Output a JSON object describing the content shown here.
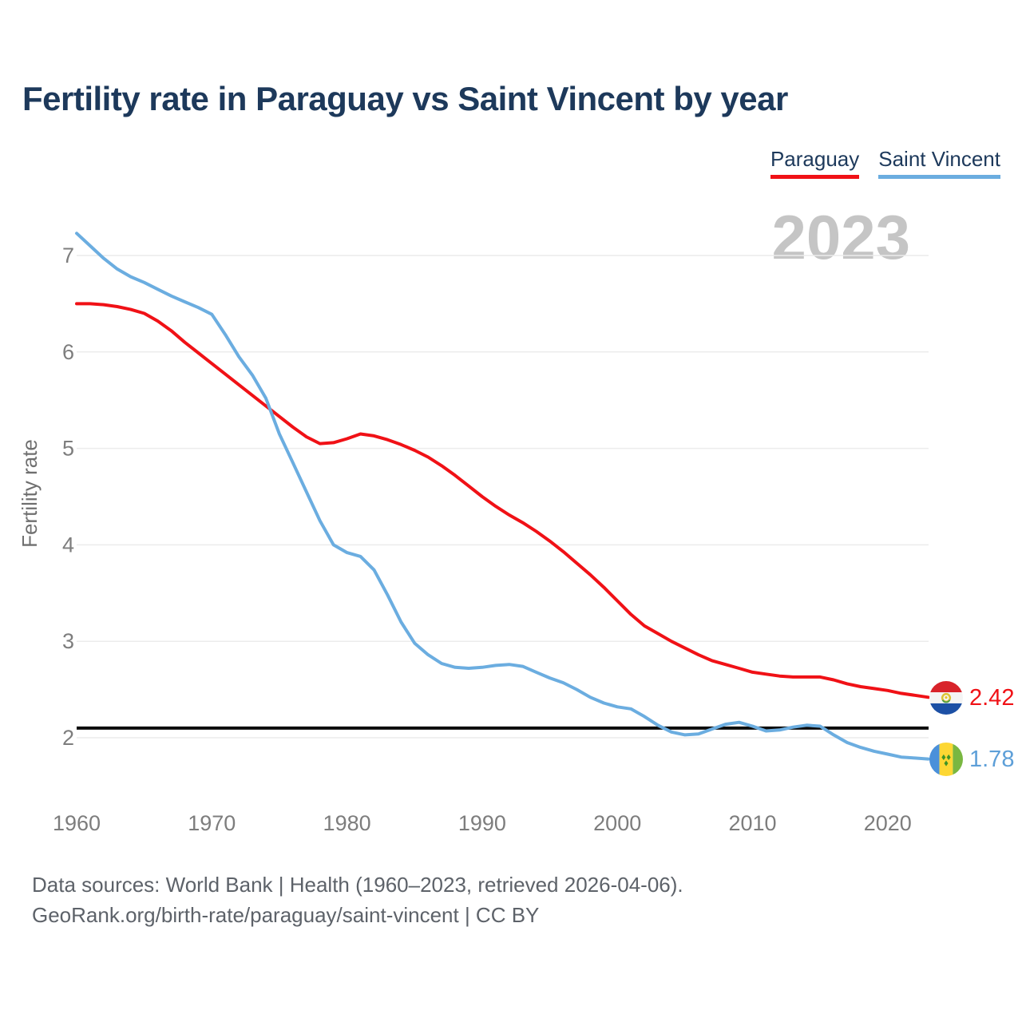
{
  "title": "Fertility rate in Paraguay vs Saint Vincent by year",
  "watermark": "2023",
  "legend": {
    "items": [
      {
        "label": "Paraguay",
        "color": "#f01116"
      },
      {
        "label": "Saint Vincent",
        "color": "#6badе0"
      }
    ]
  },
  "y_axis": {
    "label": "Fertility rate",
    "ticks": [
      2,
      3,
      4,
      5,
      6,
      7
    ]
  },
  "x_axis": {
    "ticks": [
      1960,
      1970,
      1980,
      1990,
      2000,
      2010,
      2020
    ]
  },
  "reference_line": {
    "value": 2.1,
    "color": "#0b0b0b"
  },
  "end_labels": [
    {
      "series": "Paraguay",
      "value": "2.42",
      "flag": "paraguay-flag",
      "color": "#f01116"
    },
    {
      "series": "Saint Vincent",
      "value": "1.78",
      "flag": "saint-vincent-flag",
      "color": "#5d9fd8"
    }
  ],
  "footer": {
    "line1": "Data sources: World Bank | Health (1960–2023, retrieved 2026-04-06).",
    "line2": "GeoRank.org/birth-rate/paraguay/saint-vincent | CC BY"
  },
  "chart_data": {
    "type": "line",
    "title": "Fertility rate in Paraguay vs Saint Vincent by year",
    "xlabel": "",
    "ylabel": "Fertility rate",
    "xlim": [
      1960,
      2023
    ],
    "ylim": [
      1.6,
      7.45
    ],
    "grid": "horizontal",
    "legend_position": "top-right",
    "x": [
      1960,
      1961,
      1962,
      1963,
      1964,
      1965,
      1966,
      1967,
      1968,
      1969,
      1970,
      1971,
      1972,
      1973,
      1974,
      1975,
      1976,
      1977,
      1978,
      1979,
      1980,
      1981,
      1982,
      1983,
      1984,
      1985,
      1986,
      1987,
      1988,
      1989,
      1990,
      1991,
      1992,
      1993,
      1994,
      1995,
      1996,
      1997,
      1998,
      1999,
      2000,
      2001,
      2002,
      2003,
      2004,
      2005,
      2006,
      2007,
      2008,
      2009,
      2010,
      2011,
      2012,
      2013,
      2014,
      2015,
      2016,
      2017,
      2018,
      2019,
      2020,
      2021,
      2022,
      2023
    ],
    "series": [
      {
        "name": "Paraguay",
        "color": "#f01116",
        "values": [
          6.5,
          6.5,
          6.49,
          6.47,
          6.44,
          6.4,
          6.32,
          6.22,
          6.1,
          5.99,
          5.88,
          5.77,
          5.66,
          5.55,
          5.44,
          5.33,
          5.22,
          5.12,
          5.05,
          5.06,
          5.1,
          5.15,
          5.13,
          5.09,
          5.04,
          4.98,
          4.91,
          4.82,
          4.72,
          4.61,
          4.5,
          4.4,
          4.31,
          4.23,
          4.14,
          4.04,
          3.93,
          3.81,
          3.69,
          3.56,
          3.42,
          3.28,
          3.16,
          3.08,
          3.0,
          2.93,
          2.86,
          2.8,
          2.76,
          2.72,
          2.68,
          2.66,
          2.64,
          2.63,
          2.63,
          2.63,
          2.6,
          2.56,
          2.53,
          2.51,
          2.49,
          2.46,
          2.44,
          2.42
        ]
      },
      {
        "name": "Saint Vincent",
        "color": "#6bade0",
        "values": [
          7.23,
          7.1,
          6.97,
          6.86,
          6.78,
          6.72,
          6.65,
          6.58,
          6.52,
          6.46,
          6.39,
          6.18,
          5.95,
          5.76,
          5.52,
          5.15,
          4.85,
          4.55,
          4.25,
          4.0,
          3.92,
          3.88,
          3.74,
          3.48,
          3.2,
          2.98,
          2.86,
          2.77,
          2.73,
          2.72,
          2.73,
          2.75,
          2.76,
          2.74,
          2.68,
          2.62,
          2.57,
          2.5,
          2.42,
          2.36,
          2.32,
          2.3,
          2.22,
          2.13,
          2.06,
          2.03,
          2.04,
          2.09,
          2.14,
          2.16,
          2.12,
          2.07,
          2.08,
          2.11,
          2.13,
          2.12,
          2.03,
          1.95,
          1.9,
          1.86,
          1.83,
          1.8,
          1.79,
          1.78
        ]
      }
    ],
    "reference_line_y": 2.1
  }
}
